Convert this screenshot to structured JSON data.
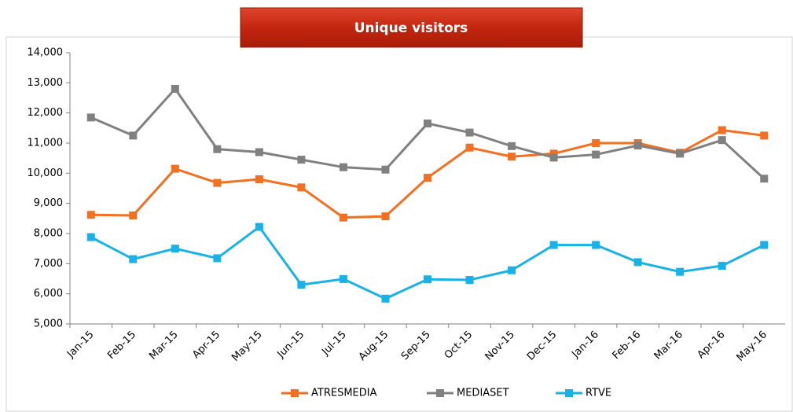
{
  "chart_data": {
    "type": "line",
    "title": "Unique visitors",
    "categories": [
      "Jan-15",
      "Feb-15",
      "Mar-15",
      "Apr-15",
      "May-15",
      "Jun-15",
      "Jul-15",
      "Aug-15",
      "Sep-15",
      "Oct-15",
      "Nov-15",
      "Dec-15",
      "Jan-16",
      "Feb-16",
      "Mar-16",
      "Apr-16",
      "May-16"
    ],
    "series": [
      {
        "name": "ATRESMEDIA",
        "color": "#f36f21",
        "values": [
          8620,
          8600,
          10150,
          9680,
          9800,
          9530,
          8530,
          8570,
          9850,
          10850,
          10550,
          10650,
          11000,
          11000,
          10680,
          11430,
          11250
        ]
      },
      {
        "name": "MEDIASET",
        "color": "#808080",
        "values": [
          11850,
          11250,
          12800,
          10800,
          10700,
          10450,
          10200,
          10120,
          11650,
          11350,
          10900,
          10520,
          10620,
          10920,
          10650,
          11100,
          9820
        ]
      },
      {
        "name": "RTVE",
        "color": "#19b2e8",
        "values": [
          7880,
          7150,
          7500,
          7180,
          8220,
          6300,
          6490,
          5840,
          6480,
          6460,
          6780,
          7620,
          7620,
          7050,
          6730,
          6930,
          7620
        ]
      }
    ],
    "ylim": [
      5000,
      14000
    ],
    "yticks": [
      {
        "value": 5000,
        "label": "5,000"
      },
      {
        "value": 6000,
        "label": "6,000"
      },
      {
        "value": 7000,
        "label": "7,000"
      },
      {
        "value": 8000,
        "label": "8,000"
      },
      {
        "value": 9000,
        "label": "9,000"
      },
      {
        "value": 10000,
        "label": "10,000"
      },
      {
        "value": 11000,
        "label": "11,000"
      },
      {
        "value": 12000,
        "label": "12,000"
      },
      {
        "value": 13000,
        "label": "13,000"
      },
      {
        "value": 14000,
        "label": "14,000"
      }
    ],
    "legend": "bottom"
  }
}
